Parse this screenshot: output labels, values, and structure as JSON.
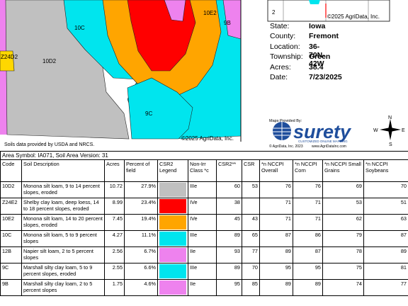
{
  "map": {
    "labels": [
      "10E2",
      "9B",
      "10C",
      "Z24D2",
      "10D2",
      "9C"
    ],
    "copyright": "©2025 AgriData, Inc."
  },
  "locator_map": {
    "label": "2",
    "copyright": "©2025 AgriData, Inc."
  },
  "info": [
    [
      "State:",
      "Iowa"
    ],
    [
      "County:",
      "Fremont"
    ],
    [
      "Location:",
      "36-70N-42W"
    ],
    [
      "Township:",
      "Green"
    ],
    [
      "Acres:",
      "38.4"
    ],
    [
      "Date:",
      "7/23/2025"
    ]
  ],
  "provider": {
    "heading": "Maps Provided By:",
    "logo": "surety",
    "tagline": "CUSTOMIZED ONLINE MAPPING",
    "copyright": "© AgriData, Inc. 2023",
    "url": "www.AgriDataInc.com"
  },
  "compass": {
    "n": "N",
    "s": "S",
    "e": "E",
    "w": "W"
  },
  "source_note": "Soils data provided by USDA and NRCS.",
  "table": {
    "caption": "Area Symbol: IA071, Soil Area Version: 31",
    "header": [
      "Code",
      "Soil Description",
      "Acres",
      "Percent of field",
      "CSR2 Legend",
      "Non-Irr Class *c",
      "CSR2**",
      "CSR",
      "*n NCCPI Overall",
      "*n NCCPI Corn",
      "*n NCCPI Small Grains",
      "*n NCCPI Soybeans"
    ],
    "rows": [
      [
        "10D2",
        "Monona silt loam, 9 to 14 percent slopes, eroded",
        "10.72",
        "27.9%",
        "IIIe",
        "60",
        "53",
        "76",
        "76",
        "69",
        "70"
      ],
      [
        "Z24E2",
        "Shelby clay loam, deep loess, 14 to 18 percent slopes, eroded",
        "8.99",
        "23.4%",
        "IVe",
        "38",
        null,
        "71",
        "71",
        "53",
        "51"
      ],
      [
        "10E2",
        "Monona silt loam, 14 to 20 percent slopes, eroded",
        "7.45",
        "19.4%",
        "IVe",
        "45",
        "43",
        "71",
        "71",
        "62",
        "63"
      ],
      [
        "10C",
        "Monona silt loam, 5 to 9 percent slopes",
        "4.27",
        "11.1%",
        "IIIe",
        "89",
        "65",
        "87",
        "86",
        "79",
        "87"
      ],
      [
        "12B",
        "Napier silt loam, 2 to 5 percent slopes",
        "2.56",
        "6.7%",
        "IIe",
        "93",
        "77",
        "89",
        "87",
        "78",
        "89"
      ],
      [
        "9C",
        "Marshall silty clay loam, 5 to 9 percent slopes, eroded",
        "2.55",
        "6.6%",
        "IIIe",
        "89",
        "70",
        "95",
        "95",
        "75",
        "81"
      ],
      [
        "9B",
        "Marshall silty clay loam, 2 to 5 percent slopes",
        "1.75",
        "4.6%",
        "IIe",
        "95",
        "85",
        "89",
        "89",
        "74",
        "77"
      ]
    ],
    "legend_colors": [
      "#c0c0c0",
      "#ff0000",
      "#ffa500",
      "#00e5ee",
      "#ee82ee",
      "#00e5ee",
      "#ee82ee"
    ]
  }
}
